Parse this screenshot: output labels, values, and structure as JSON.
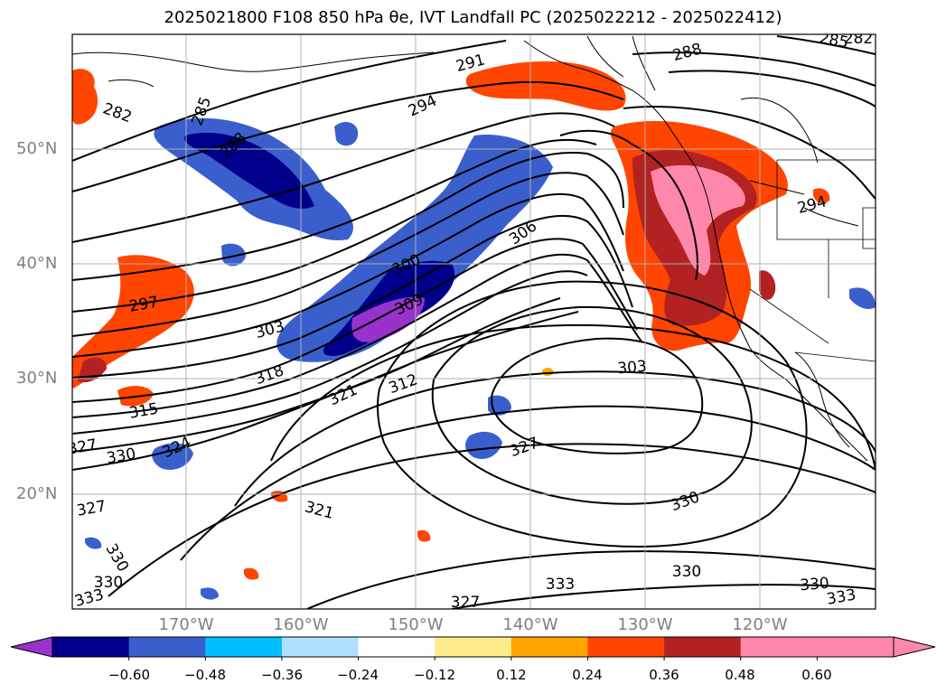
{
  "title": "2025021800 F108 850 hPa θe, IVT Landfall PC (2025022212 - 2025022412)",
  "lat_labels": [
    "50°N",
    "40°N",
    "30°N",
    "20°N"
  ],
  "lon_labels": [
    "170°W",
    "160°W",
    "150°W",
    "140°W",
    "130°W",
    "120°W"
  ],
  "colorbar": {
    "ticks": [
      "−0.60",
      "−0.48",
      "−0.36",
      "−0.24",
      "−0.12",
      "0.12",
      "0.24",
      "0.36",
      "0.48",
      "0.60"
    ],
    "colors": [
      "#9932cc",
      "#00008b",
      "#3a5fcd",
      "#00bfff",
      "#b0e0ff",
      "#ffffff",
      "#ffec8b",
      "#ffa500",
      "#ff4500",
      "#b22222",
      "#ff88aa",
      "#ff88aa"
    ]
  },
  "contour_labels": [
    "282",
    "285",
    "288",
    "291",
    "294",
    "285",
    "288",
    "282",
    "294",
    "297",
    "300",
    "303",
    "306",
    "309",
    "303",
    "312",
    "315",
    "318",
    "321",
    "324",
    "327",
    "330",
    "327",
    "321",
    "330",
    "330",
    "327",
    "330",
    "333",
    "333",
    "330",
    "333",
    "327",
    "330"
  ],
  "colors": {
    "land_outline": "#000000",
    "contour": "#000000",
    "grid": "#b0b0b0"
  }
}
